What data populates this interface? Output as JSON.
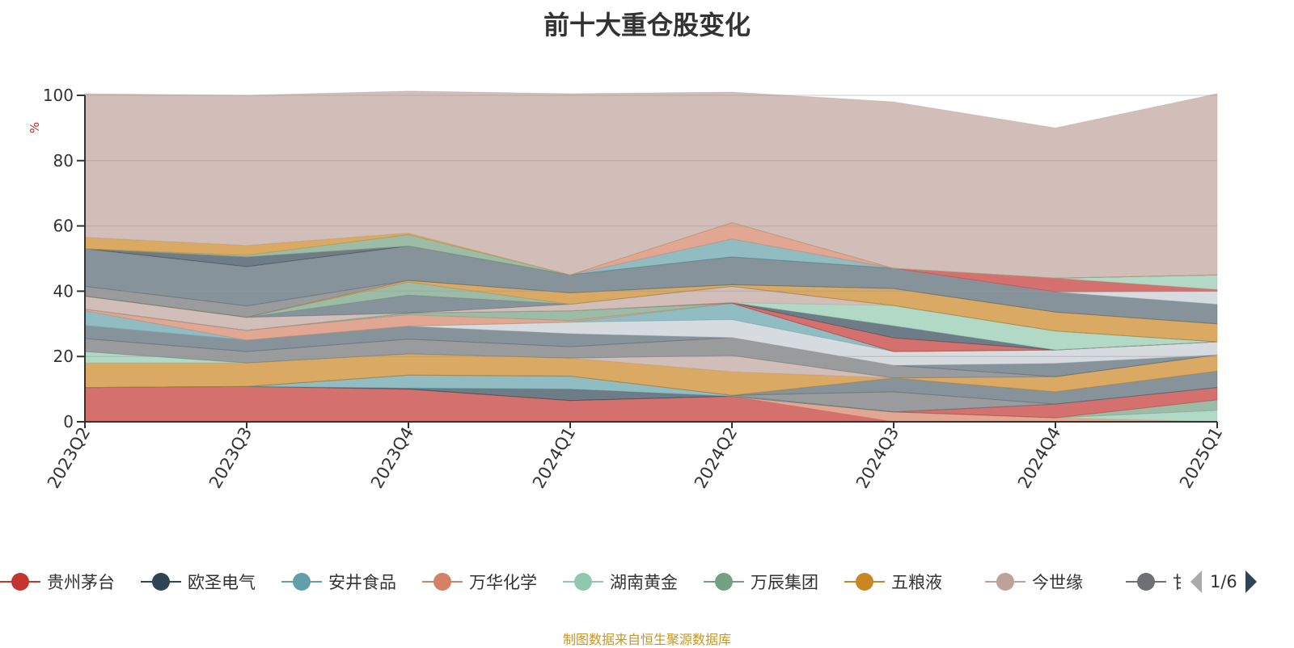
{
  "chart_data": {
    "type": "area",
    "stacked": true,
    "title": "前十大重仓股变化",
    "ylabel": "%",
    "xlabel": "",
    "ylim": [
      0,
      100
    ],
    "yticks": [
      "0",
      "20",
      "40",
      "60",
      "80",
      "100"
    ],
    "categories": [
      "2023Q2",
      "2023Q3",
      "2023Q4",
      "2024Q1",
      "2024Q2",
      "2024Q3",
      "2024Q4",
      "2025Q1"
    ],
    "grid": true,
    "legend_position": "bottom",
    "series": [
      {
        "name": "贵州茅台",
        "color": "#c23531",
        "values": [
          10.5,
          10.8,
          10,
          6.5,
          7.8,
          0,
          0,
          0
        ]
      },
      {
        "name": "万华化学",
        "color": "#d48265",
        "values": [
          0,
          0,
          0,
          0,
          0,
          3,
          1.2,
          0
        ]
      },
      {
        "name": "湖南黄金",
        "color": "#91c7ae",
        "values": [
          0,
          0,
          0,
          0,
          0,
          0,
          0,
          3.5
        ]
      },
      {
        "name": "万辰集团",
        "color": "#749f83",
        "values": [
          0,
          0,
          0,
          0,
          0,
          0,
          0,
          3.2
        ]
      },
      {
        "color": "#c23531",
        "values": [
          0,
          0,
          0,
          0,
          0,
          0,
          4.2,
          3.8
        ]
      },
      {
        "name": "欧圣电气",
        "color": "#2f4554",
        "values": [
          0,
          0,
          0.3,
          3.5,
          0,
          0,
          0,
          0
        ]
      },
      {
        "name": "安井食品",
        "color": "#61a0a8",
        "values": [
          0,
          0,
          4,
          4,
          0.3,
          0,
          0,
          0
        ]
      },
      {
        "name": "甘源食品",
        "color": "#6e7074",
        "values": [
          0,
          0,
          0,
          0,
          0,
          6.2,
          0,
          0
        ]
      },
      {
        "color": "#546570",
        "values": [
          0,
          0,
          0,
          0,
          0,
          4.2,
          3.8,
          5
        ]
      },
      {
        "name": "五粮液",
        "color": "#ca8622",
        "values": [
          7.5,
          7.2,
          6.5,
          5.5,
          7.2,
          0,
          4.6,
          5
        ]
      },
      {
        "name": "今世缘",
        "color": "#bda29a",
        "values": [
          0,
          0,
          0,
          0,
          5,
          0,
          0,
          0
        ]
      },
      {
        "color": "#91c7ae",
        "values": [
          3.5,
          0,
          0,
          0,
          0,
          0,
          0,
          0
        ]
      },
      {
        "color": "#6e7074",
        "values": [
          4,
          3.5,
          4.5,
          3.5,
          5.5,
          3.9,
          0,
          0
        ]
      },
      {
        "color": "#546570",
        "values": [
          4,
          3.5,
          4,
          4,
          0,
          0,
          4.1,
          0
        ]
      },
      {
        "color": "#c4ccd3",
        "values": [
          0,
          0,
          0,
          3.5,
          5.5,
          4.2,
          4.1,
          4
        ]
      },
      {
        "color": "#61a0a8",
        "values": [
          4.5,
          0,
          0,
          0,
          5,
          0,
          0,
          0
        ]
      },
      {
        "color": "#d48265",
        "values": [
          0.5,
          3,
          3.5,
          0.5,
          0,
          0,
          0,
          0
        ]
      },
      {
        "color": "#749f83",
        "values": [
          0,
          0,
          0.5,
          3,
          0,
          0,
          0,
          0
        ]
      },
      {
        "color": "#c23531",
        "values": [
          0,
          0,
          0,
          0,
          0.2,
          4.2,
          0,
          0
        ]
      },
      {
        "color": "#2f4554",
        "values": [
          0,
          0,
          0,
          0,
          0,
          3.7,
          0,
          0
        ]
      },
      {
        "color": "#91c7ae",
        "values": [
          0,
          0,
          0,
          0,
          0,
          6.2,
          5.8,
          0
        ]
      },
      {
        "color": "#bda29a",
        "values": [
          4,
          4,
          0,
          2,
          5,
          0,
          0,
          0
        ]
      },
      {
        "color": "#546570",
        "values": [
          0,
          0,
          5.5,
          0,
          0,
          0,
          0,
          0
        ]
      },
      {
        "color": "#749f83",
        "values": [
          0,
          0,
          4,
          0,
          0,
          0,
          0,
          0
        ]
      },
      {
        "color": "#ca8622",
        "values": [
          0,
          0,
          0.5,
          3.5,
          0.5,
          5.2,
          5.8,
          5.5
        ]
      },
      {
        "color": "#6e7074",
        "values": [
          3,
          3.5,
          0,
          0,
          0,
          0,
          0,
          0
        ]
      },
      {
        "color": "#546570",
        "values": [
          11.5,
          12,
          10.5,
          5.5,
          8.5,
          6.2,
          6.2,
          6
        ]
      },
      {
        "color": "#c4ccd3",
        "values": [
          0,
          0,
          0,
          0,
          0,
          0,
          0,
          4
        ]
      },
      {
        "color": "#c23531",
        "values": [
          0,
          0,
          0,
          0,
          0,
          0,
          4.2,
          0.5
        ]
      },
      {
        "color": "#91c7ae",
        "values": [
          0,
          0,
          0,
          0,
          0,
          0,
          0,
          4.5
        ]
      },
      {
        "color": "#2f4554",
        "values": [
          0,
          3,
          0,
          0,
          0,
          0,
          0,
          0
        ]
      },
      {
        "color": "#61a0a8",
        "values": [
          0,
          0,
          0,
          0,
          5.5,
          0,
          0,
          0
        ]
      },
      {
        "color": "#d48265",
        "values": [
          0,
          0,
          0,
          0,
          5,
          0,
          0,
          0
        ]
      },
      {
        "color": "#749f83",
        "values": [
          0,
          0.5,
          3.5,
          0,
          0,
          0,
          0,
          0
        ]
      },
      {
        "color": "#ca8622",
        "values": [
          3.5,
          3,
          0.5,
          0,
          0,
          0,
          0,
          0
        ]
      },
      {
        "color": "#bda29a",
        "values": [
          44,
          46,
          43.5,
          55.5,
          40,
          51,
          46,
          55.5
        ]
      }
    ]
  },
  "legend": {
    "items": [
      {
        "name": "贵州茅台",
        "color": "#c23531"
      },
      {
        "name": "欧圣电气",
        "color": "#2f4554"
      },
      {
        "name": "安井食品",
        "color": "#61a0a8"
      },
      {
        "name": "万华化学",
        "color": "#d48265"
      },
      {
        "name": "湖南黄金",
        "color": "#91c7ae"
      },
      {
        "name": "万辰集团",
        "color": "#749f83"
      },
      {
        "name": "五粮液",
        "color": "#ca8622"
      },
      {
        "name": "今世缘",
        "color": "#bda29a"
      },
      {
        "name": "甘源食品",
        "color": "#6e7074"
      }
    ],
    "page": "1/6"
  },
  "footer": "制图数据来自恒生聚源数据库"
}
